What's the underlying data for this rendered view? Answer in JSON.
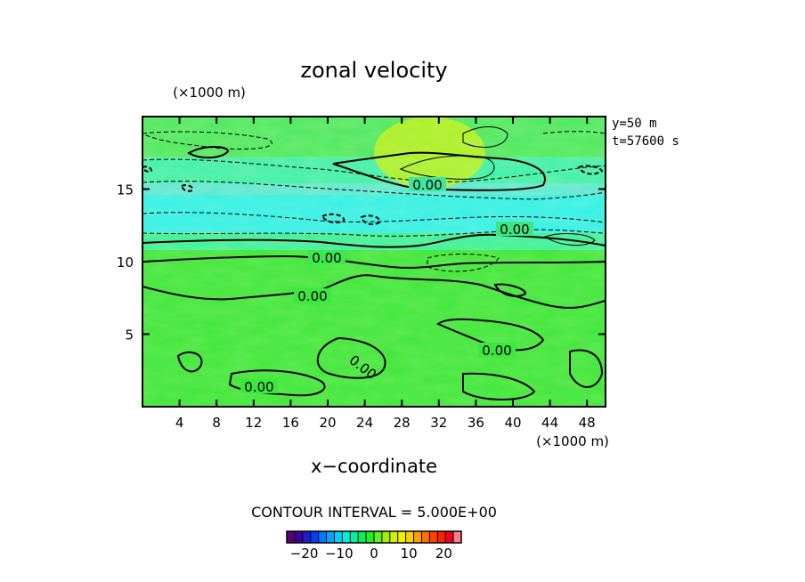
{
  "chart_data": {
    "type": "heatmap",
    "title": "zonal velocity",
    "xlabel": "x−coordinate",
    "y_unit_label": "(×1000 m)",
    "x_unit_label": "(×1000 m)",
    "annotations": [
      "y=50 m",
      "t=57600 s"
    ],
    "contour_interval_label": "CONTOUR INTERVAL = 5.000E+00",
    "contour_labels": [
      "0.00",
      "0.00",
      "0.00",
      "0.00",
      "0.00",
      "0.00",
      "0.00"
    ],
    "xlim": [
      0,
      50
    ],
    "ylim": [
      0,
      20
    ],
    "x_ticks": [
      4,
      8,
      12,
      16,
      20,
      24,
      28,
      32,
      36,
      40,
      44,
      48
    ],
    "y_ticks": [
      5,
      10,
      15
    ],
    "grid": false,
    "colorbar": {
      "range": [
        -25,
        25
      ],
      "ticks": [
        -20,
        -10,
        0,
        10,
        20
      ],
      "tick_labels": [
        "−20",
        "−10",
        "0",
        "10",
        "20"
      ],
      "colors": [
        "#5a0078",
        "#3c00a0",
        "#1e1ec8",
        "#0040ff",
        "#0078ff",
        "#00a8ff",
        "#00d0ff",
        "#00f0e0",
        "#00f0a0",
        "#00f060",
        "#20f020",
        "#60f020",
        "#a0f000",
        "#d0f000",
        "#f0f000",
        "#ffd000",
        "#ffa000",
        "#ff7000",
        "#ff4000",
        "#ff2000",
        "#f00020",
        "#ff8080"
      ]
    },
    "bands": [
      {
        "y_range": [
          0,
          10.8
        ],
        "value": 1.5,
        "color": "#3fe63a"
      },
      {
        "y_range": [
          10.8,
          12.0
        ],
        "value": -3.0,
        "color": "#3df09a"
      },
      {
        "y_range": [
          12.0,
          14.6
        ],
        "value": -8.0,
        "color": "#33f0e6"
      },
      {
        "y_range": [
          14.6,
          15.4
        ],
        "value": -6.0,
        "color": "#5ee8d0"
      },
      {
        "y_range": [
          15.4,
          17.2
        ],
        "value": -4.0,
        "color": "#40f0a8"
      },
      {
        "y_range": [
          17.2,
          20.0
        ],
        "value": -1.0,
        "color": "#4ee860"
      }
    ],
    "positive_region": {
      "x_range": [
        25,
        37
      ],
      "y_range": [
        15.5,
        20
      ],
      "value": 5.0,
      "color": "#b6f020"
    }
  }
}
